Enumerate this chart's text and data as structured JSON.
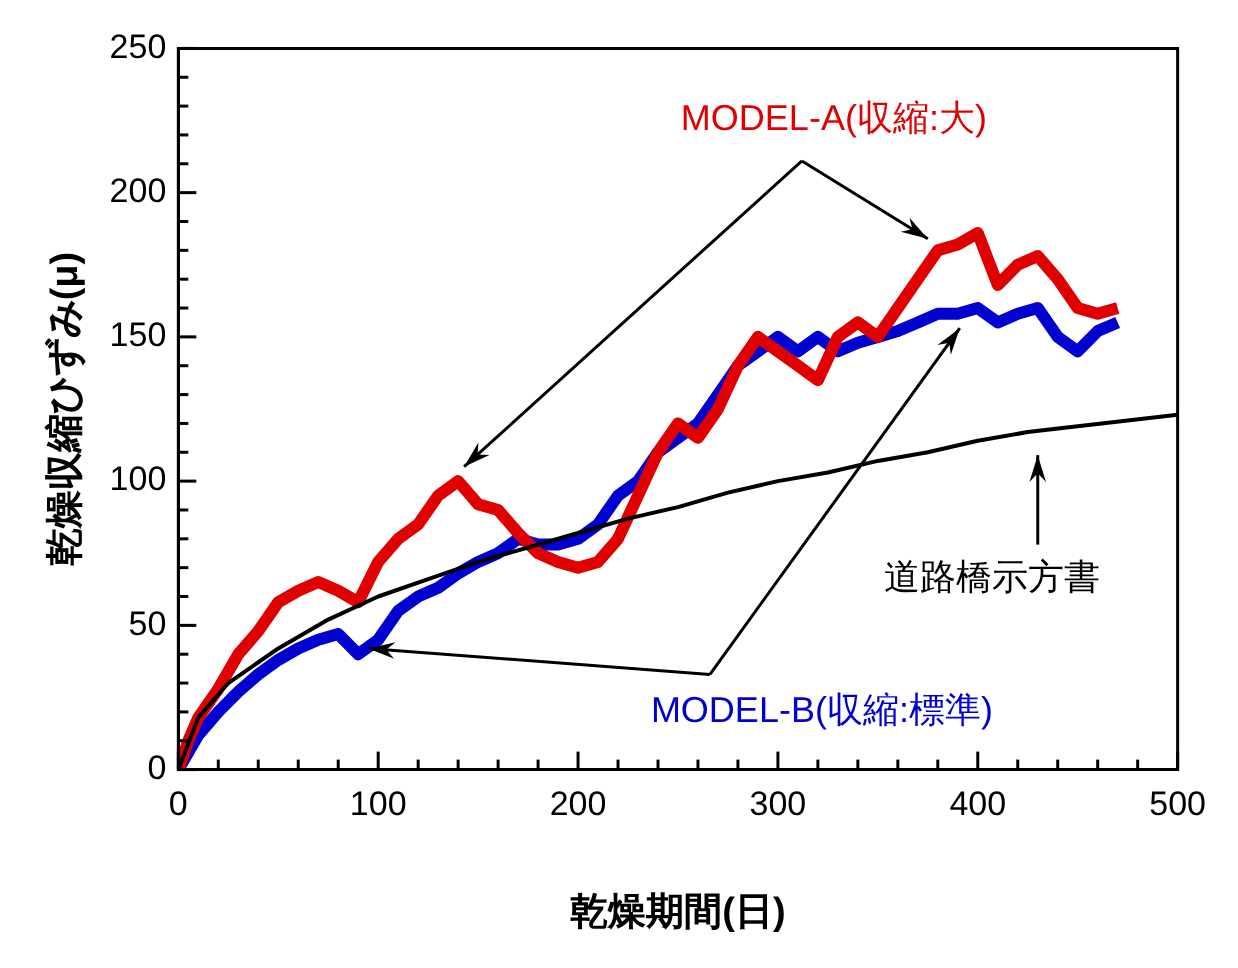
{
  "chart_data": {
    "type": "line",
    "xlabel": "乾燥期間(日)",
    "ylabel": "乾燥収縮ひずみ(μ)",
    "xlim": [
      0,
      500
    ],
    "ylim": [
      0,
      250
    ],
    "xticks": [
      0,
      {
        "value": 20,
        "label": null
      },
      {
        "value": 40,
        "label": null
      },
      {
        "value": 60,
        "label": null
      },
      {
        "value": 80,
        "label": null
      },
      100,
      {
        "value": 120,
        "label": null
      },
      {
        "value": 140,
        "label": null
      },
      {
        "value": 160,
        "label": null
      },
      {
        "value": 180,
        "label": null
      },
      200,
      {
        "value": 220,
        "label": null
      },
      {
        "value": 240,
        "label": null
      },
      {
        "value": 260,
        "label": null
      },
      {
        "value": 280,
        "label": null
      },
      300,
      {
        "value": 320,
        "label": null
      },
      {
        "value": 340,
        "label": null
      },
      {
        "value": 360,
        "label": null
      },
      {
        "value": 380,
        "label": null
      },
      400,
      {
        "value": 420,
        "label": null
      },
      {
        "value": 440,
        "label": null
      },
      {
        "value": 460,
        "label": null
      },
      {
        "value": 480,
        "label": null
      },
      500
    ],
    "yticks": [
      0,
      {
        "value": 10,
        "label": null
      },
      {
        "value": 20,
        "label": null
      },
      {
        "value": 30,
        "label": null
      },
      {
        "value": 40,
        "label": null
      },
      50,
      {
        "value": 60,
        "label": null
      },
      {
        "value": 70,
        "label": null
      },
      {
        "value": 80,
        "label": null
      },
      {
        "value": 90,
        "label": null
      },
      100,
      {
        "value": 110,
        "label": null
      },
      {
        "value": 120,
        "label": null
      },
      {
        "value": 130,
        "label": null
      },
      {
        "value": 140,
        "label": null
      },
      150,
      {
        "value": 160,
        "label": null
      },
      {
        "value": 170,
        "label": null
      },
      {
        "value": 180,
        "label": null
      },
      {
        "value": 190,
        "label": null
      },
      200,
      {
        "value": 210,
        "label": null
      },
      {
        "value": 220,
        "label": null
      },
      {
        "value": 230,
        "label": null
      },
      {
        "value": 240,
        "label": null
      },
      250
    ],
    "grid": false,
    "legend": false,
    "marker": "none",
    "series": [
      {
        "name": "道路橋示方書",
        "color": "#000000",
        "x": [
          0,
          10,
          25,
          50,
          75,
          100,
          125,
          150,
          175,
          200,
          225,
          250,
          275,
          300,
          325,
          350,
          375,
          400,
          425,
          450,
          475,
          500
        ],
        "values": [
          0,
          18,
          30,
          42,
          52,
          60,
          66,
          72,
          77,
          82,
          87,
          91,
          96,
          100,
          103,
          107,
          110,
          114,
          117,
          119,
          121,
          123
        ]
      },
      {
        "name": "MODEL-A(収縮:大)",
        "color": "#e00000",
        "x": [
          0,
          5,
          10,
          20,
          30,
          40,
          50,
          60,
          70,
          80,
          90,
          100,
          110,
          120,
          130,
          140,
          150,
          160,
          170,
          180,
          190,
          200,
          210,
          220,
          230,
          240,
          250,
          260,
          270,
          280,
          290,
          300,
          310,
          320,
          330,
          340,
          350,
          360,
          370,
          380,
          390,
          400,
          410,
          420,
          430,
          440,
          450,
          460,
          470
        ],
        "values": [
          0,
          10,
          18,
          28,
          40,
          48,
          58,
          62,
          65,
          62,
          58,
          72,
          80,
          85,
          95,
          100,
          92,
          90,
          82,
          75,
          72,
          70,
          72,
          80,
          95,
          110,
          120,
          115,
          125,
          140,
          150,
          145,
          140,
          135,
          150,
          155,
          150,
          160,
          170,
          180,
          182,
          186,
          168,
          175,
          178,
          170,
          160,
          158,
          160
        ]
      },
      {
        "name": "MODEL-B(収縮:標準)",
        "color": "#0000d0",
        "x": [
          0,
          10,
          20,
          30,
          40,
          50,
          60,
          70,
          80,
          90,
          100,
          110,
          120,
          130,
          140,
          150,
          160,
          170,
          180,
          190,
          200,
          210,
          220,
          230,
          240,
          250,
          260,
          270,
          280,
          290,
          300,
          310,
          320,
          330,
          340,
          350,
          360,
          370,
          380,
          390,
          400,
          410,
          420,
          430,
          440,
          450,
          460,
          470
        ],
        "values": [
          0,
          12,
          20,
          27,
          33,
          38,
          42,
          45,
          47,
          40,
          45,
          55,
          60,
          63,
          68,
          72,
          75,
          80,
          78,
          78,
          80,
          85,
          95,
          100,
          110,
          115,
          120,
          130,
          140,
          145,
          150,
          145,
          150,
          145,
          148,
          150,
          152,
          155,
          158,
          158,
          160,
          155,
          158,
          160,
          150,
          145,
          152,
          155
        ]
      }
    ]
  }
}
